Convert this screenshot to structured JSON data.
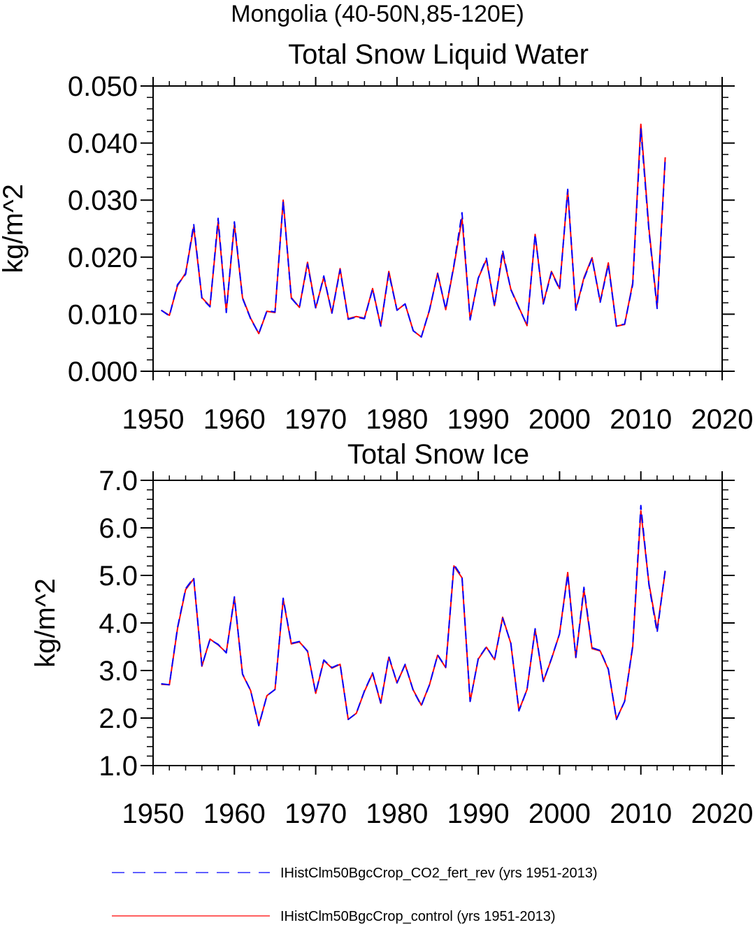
{
  "figure_title": "Mongolia (40-50N,85-120E)",
  "legend": {
    "items": [
      {
        "label": "IHistClm50BgcCrop_CO2_fert_rev (yrs 1951-2013)",
        "color": "#0000ff",
        "style": "dashed"
      },
      {
        "label": "IHistClm50BgcCrop_control (yrs 1951-2013)",
        "color": "#ff0000",
        "style": "solid"
      }
    ]
  },
  "chart_data": [
    {
      "type": "line",
      "title": "Total Snow Liquid Water",
      "xlabel": "",
      "ylabel": "kg/m^2",
      "xlim": [
        1950,
        2020
      ],
      "ylim": [
        0.0,
        0.05
      ],
      "xticks": [
        "1950",
        "1960",
        "1970",
        "1980",
        "1990",
        "2000",
        "2010",
        "2020"
      ],
      "yticks": [
        "0.000",
        "0.010",
        "0.020",
        "0.030",
        "0.040",
        "0.050"
      ],
      "x_start": 1951,
      "series": [
        {
          "name": "IHistClm50BgcCrop_CO2_fert_rev (yrs 1951-2013)",
          "color": "#0000ff",
          "style": "dashed",
          "values": [
            0.0107,
            0.0097,
            0.0152,
            0.017,
            0.0258,
            0.0128,
            0.0113,
            0.0268,
            0.0103,
            0.0262,
            0.0128,
            0.0092,
            0.0066,
            0.0106,
            0.0104,
            0.0298,
            0.0128,
            0.0112,
            0.0188,
            0.011,
            0.0167,
            0.0102,
            0.0178,
            0.0091,
            0.0095,
            0.0092,
            0.0144,
            0.0079,
            0.0172,
            0.0107,
            0.0118,
            0.0071,
            0.006,
            0.0108,
            0.0171,
            0.0109,
            0.0186,
            0.0278,
            0.009,
            0.0163,
            0.0198,
            0.0114,
            0.0212,
            0.0143,
            0.0111,
            0.0081,
            0.024,
            0.0118,
            0.0173,
            0.0144,
            0.0319,
            0.0107,
            0.0162,
            0.0198,
            0.0121,
            0.0187,
            0.0079,
            0.0083,
            0.0152,
            0.0425,
            0.0246,
            0.011,
            0.0372
          ]
        },
        {
          "name": "IHistClm50BgcCrop_control (yrs 1951-2013)",
          "color": "#ff0000",
          "style": "solid",
          "values": [
            0.0107,
            0.0098,
            0.015,
            0.0172,
            0.0253,
            0.0129,
            0.0114,
            0.0262,
            0.0105,
            0.0257,
            0.0129,
            0.0093,
            0.0066,
            0.0105,
            0.0103,
            0.03,
            0.0129,
            0.0112,
            0.0191,
            0.0111,
            0.0165,
            0.0102,
            0.018,
            0.0092,
            0.0096,
            0.0093,
            0.0145,
            0.0079,
            0.0175,
            0.0107,
            0.0118,
            0.0071,
            0.006,
            0.0107,
            0.0172,
            0.0108,
            0.0184,
            0.0268,
            0.0091,
            0.0163,
            0.0196,
            0.0115,
            0.0207,
            0.0144,
            0.0112,
            0.008,
            0.024,
            0.0119,
            0.0175,
            0.0145,
            0.0317,
            0.0108,
            0.0164,
            0.0199,
            0.0122,
            0.019,
            0.0079,
            0.0082,
            0.0155,
            0.0433,
            0.025,
            0.0113,
            0.0375
          ]
        }
      ]
    },
    {
      "type": "line",
      "title": "Total Snow Ice",
      "xlabel": "",
      "ylabel": "kg/m^2",
      "xlim": [
        1950,
        2020
      ],
      "ylim": [
        1.0,
        7.0
      ],
      "xticks": [
        "1950",
        "1960",
        "1970",
        "1980",
        "1990",
        "2000",
        "2010",
        "2020"
      ],
      "yticks": [
        "1.0",
        "2.0",
        "3.0",
        "4.0",
        "5.0",
        "6.0",
        "7.0"
      ],
      "x_start": 1951,
      "series": [
        {
          "name": "IHistClm50BgcCrop_CO2_fert_rev (yrs 1951-2013)",
          "color": "#0000ff",
          "style": "dashed",
          "values": [
            2.72,
            2.7,
            3.9,
            4.72,
            4.95,
            3.1,
            3.65,
            3.55,
            3.37,
            4.55,
            2.93,
            2.58,
            1.84,
            2.47,
            2.6,
            4.52,
            3.57,
            3.61,
            3.4,
            2.53,
            3.22,
            3.06,
            3.14,
            1.97,
            2.1,
            2.57,
            2.95,
            2.32,
            3.3,
            2.74,
            3.13,
            2.58,
            2.26,
            2.7,
            3.33,
            3.07,
            5.23,
            4.97,
            2.35,
            3.25,
            3.5,
            3.22,
            4.1,
            3.58,
            2.15,
            2.6,
            3.88,
            2.77,
            3.25,
            3.77,
            5.02,
            3.28,
            4.75,
            3.48,
            3.42,
            3.03,
            1.97,
            2.35,
            3.52,
            6.47,
            4.8,
            3.8,
            5.12
          ]
        },
        {
          "name": "IHistClm50BgcCrop_control (yrs 1951-2013)",
          "color": "#ff0000",
          "style": "solid",
          "values": [
            2.71,
            2.7,
            3.88,
            4.7,
            4.93,
            3.09,
            3.66,
            3.54,
            3.38,
            4.53,
            2.92,
            2.58,
            1.85,
            2.47,
            2.6,
            4.5,
            3.56,
            3.6,
            3.41,
            2.52,
            3.21,
            3.05,
            3.13,
            1.97,
            2.1,
            2.56,
            2.94,
            2.31,
            3.28,
            2.74,
            3.12,
            2.59,
            2.27,
            2.7,
            3.32,
            3.06,
            5.2,
            4.95,
            2.35,
            3.24,
            3.49,
            3.23,
            4.12,
            3.57,
            2.16,
            2.6,
            3.86,
            2.77,
            3.24,
            3.77,
            5.06,
            3.27,
            4.7,
            3.46,
            3.41,
            3.02,
            1.98,
            2.35,
            3.5,
            6.36,
            4.83,
            3.86,
            5.09
          ]
        }
      ]
    }
  ]
}
